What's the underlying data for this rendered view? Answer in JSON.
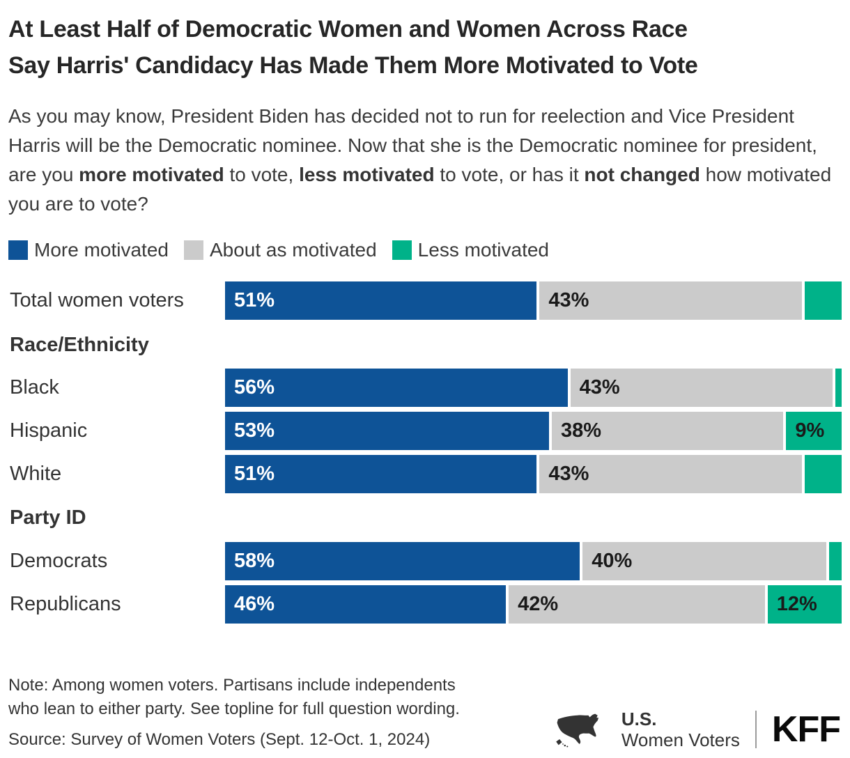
{
  "header": {
    "title_line1": "At Least Half of Democratic Women and Women Across Race",
    "title_line2": "Say Harris' Candidacy Has Made Them More Motivated to Vote",
    "question_segments": [
      {
        "text": "As you may know, President Biden has decided not to run for reelection and Vice President Harris will be the Democratic nominee. Now that she is the Democratic nominee for president, are you ",
        "bold": false
      },
      {
        "text": "more motivated",
        "bold": true
      },
      {
        "text": " to vote, ",
        "bold": false
      },
      {
        "text": "less motivated",
        "bold": true
      },
      {
        "text": " to vote, or has it ",
        "bold": false
      },
      {
        "text": "not changed",
        "bold": true
      },
      {
        "text": " how motivated you are to vote?",
        "bold": false
      }
    ]
  },
  "legend": {
    "items": [
      {
        "label": "More motivated",
        "color": "#0E5397"
      },
      {
        "label": "About as motivated",
        "color": "#CBCBCB"
      },
      {
        "label": "Less motivated",
        "color": "#00B289"
      }
    ]
  },
  "chart_data": {
    "type": "bar",
    "subtype": "horizontal-stacked",
    "units": "percent",
    "xlim": [
      0,
      100
    ],
    "title": "At Least Half of Democratic Women and Women Across Race Say Harris' Candidacy Has Made Them More Motivated to Vote",
    "series_names": [
      "More motivated",
      "About as motivated",
      "Less motivated"
    ],
    "series_colors": [
      "#0E5397",
      "#CBCBCB",
      "#00B289"
    ],
    "label_text_colors": [
      "#ffffff",
      "#1a1a1a",
      "#1a1a1a"
    ],
    "unlabeled_values_estimated": true,
    "rows": [
      {
        "type": "row",
        "label": "Total women voters",
        "values": [
          51,
          43,
          6
        ],
        "labels": [
          "51%",
          "43%",
          ""
        ]
      },
      {
        "type": "header",
        "label": "Race/Ethnicity"
      },
      {
        "type": "row",
        "label": "Black",
        "values": [
          56,
          43,
          1
        ],
        "labels": [
          "56%",
          "43%",
          ""
        ]
      },
      {
        "type": "row",
        "label": "Hispanic",
        "values": [
          53,
          38,
          9
        ],
        "labels": [
          "53%",
          "38%",
          "9%"
        ]
      },
      {
        "type": "row",
        "label": "White",
        "values": [
          51,
          43,
          6
        ],
        "labels": [
          "51%",
          "43%",
          ""
        ]
      },
      {
        "type": "header",
        "label": "Party ID"
      },
      {
        "type": "row",
        "label": "Democrats",
        "values": [
          58,
          40,
          2
        ],
        "labels": [
          "58%",
          "40%",
          ""
        ]
      },
      {
        "type": "row",
        "label": "Republicans",
        "values": [
          46,
          42,
          12
        ],
        "labels": [
          "46%",
          "42%",
          "12%"
        ]
      }
    ]
  },
  "footer": {
    "note": "Note: Among women voters. Partisans include independents who lean to either party. See topline for full question wording.",
    "source": "Source: Survey of Women Voters (Sept. 12-Oct. 1, 2024)",
    "brand": {
      "region": "U.S.",
      "audience": "Women Voters",
      "org": "KFF"
    }
  }
}
